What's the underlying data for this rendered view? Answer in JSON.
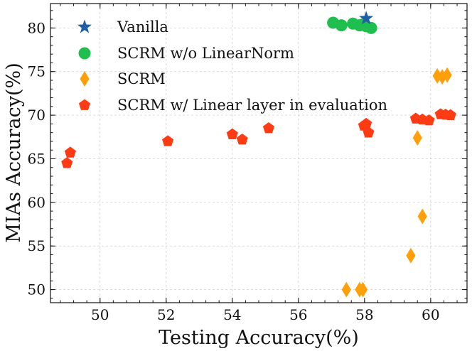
{
  "chart_data": {
    "type": "scatter",
    "title": "",
    "xlabel": "Testing Accuracy(%)",
    "ylabel": "MIAs Accuracy(%)",
    "xlim": [
      48.5,
      61.1
    ],
    "ylim": [
      48.5,
      82.8
    ],
    "xticks": [
      50,
      52,
      54,
      56,
      58,
      60
    ],
    "yticks": [
      50,
      55,
      60,
      65,
      70,
      75,
      80
    ],
    "grid": true,
    "legend_position": "top-left",
    "series": [
      {
        "name": "Vanilla",
        "marker": "star",
        "color": "#1f5fa6",
        "points": [
          [
            58.05,
            81.1
          ]
        ]
      },
      {
        "name": "SCRM w/o LinearNorm",
        "marker": "circle",
        "color": "#1fbf4f",
        "points": [
          [
            57.05,
            80.6
          ],
          [
            57.3,
            80.3
          ],
          [
            57.65,
            80.5
          ],
          [
            57.85,
            80.3
          ],
          [
            57.95,
            80.4
          ],
          [
            58.05,
            80.2
          ],
          [
            58.2,
            80.0
          ]
        ]
      },
      {
        "name": "SCRM",
        "marker": "diamond",
        "color": "#ff9f0a",
        "points": [
          [
            60.2,
            74.5
          ],
          [
            60.35,
            74.4
          ],
          [
            60.5,
            74.6
          ],
          [
            59.6,
            67.4
          ],
          [
            59.75,
            58.4
          ],
          [
            59.4,
            53.9
          ],
          [
            57.45,
            50.0
          ],
          [
            57.85,
            50.0
          ],
          [
            57.95,
            50.0
          ]
        ]
      },
      {
        "name": "SCRM w/ Linear layer in evaluation",
        "marker": "pentagon",
        "color": "#ff3b14",
        "points": [
          [
            49.0,
            64.5
          ],
          [
            49.1,
            65.7
          ],
          [
            52.05,
            67.0
          ],
          [
            54.0,
            67.8
          ],
          [
            54.3,
            67.2
          ],
          [
            55.1,
            68.5
          ],
          [
            57.98,
            68.8
          ],
          [
            58.05,
            69.0
          ],
          [
            58.12,
            68.0
          ],
          [
            59.55,
            69.6
          ],
          [
            59.75,
            69.5
          ],
          [
            59.95,
            69.4
          ],
          [
            60.3,
            70.1
          ],
          [
            60.45,
            70.05
          ],
          [
            60.6,
            70.0
          ]
        ]
      }
    ]
  }
}
